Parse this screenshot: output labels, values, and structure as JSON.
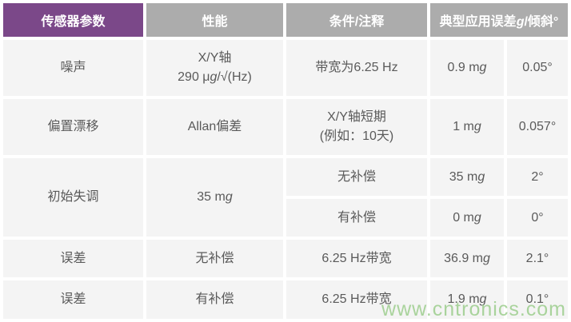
{
  "colors": {
    "header_primary": "#7B4889",
    "header_secondary": "#ACACAC",
    "cell_bg": "#F4F4F4",
    "text_color": "#5A5A5A",
    "watermark_green": "#9CCE8D"
  },
  "table": {
    "headers": [
      {
        "label": "传感器参数"
      },
      {
        "label": "性能"
      },
      {
        "label": "条件/注释"
      },
      {
        "label": "典型应用误差g/倾斜°"
      }
    ],
    "rows": [
      {
        "param": "噪声",
        "performance": "X/Y轴\n290 μg/√(Hz)",
        "condition": "带宽为6.25 Hz",
        "error_g": "0.9 mg",
        "error_tilt": "0.05°"
      },
      {
        "param": "偏置漂移",
        "performance": "Allan偏差",
        "condition": "X/Y轴短期\n(例如：10天)",
        "error_g": "1 mg",
        "error_tilt": "0.057°"
      },
      {
        "param": "初始失调",
        "performance": "35 mg",
        "sub_rows": [
          {
            "condition": "无补偿",
            "error_g": "35 mg",
            "error_tilt": "2°"
          },
          {
            "condition": "有补偿",
            "error_g": "0 mg",
            "error_tilt": "0°"
          }
        ]
      },
      {
        "param": "误差",
        "performance": "无补偿",
        "condition": "6.25 Hz带宽",
        "error_g": "36.9 mg",
        "error_tilt": "2.1°"
      },
      {
        "param": "误差",
        "performance": "有补偿",
        "condition": "6.25 Hz带宽",
        "error_g": "1.9 mg",
        "error_tilt": "0.1°"
      }
    ]
  },
  "watermark": "www.cntronics.com"
}
